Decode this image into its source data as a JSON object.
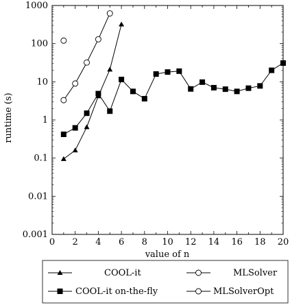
{
  "chart_data": {
    "type": "line",
    "title": "",
    "xlabel": "value of n",
    "ylabel": "runtime (s)",
    "xlim": [
      0,
      20
    ],
    "ylim": [
      0.001,
      1000
    ],
    "yscale": "log",
    "grid": false,
    "legend_placement": "bottom",
    "x_ticks": [
      "0",
      "2",
      "4",
      "6",
      "8",
      "10",
      "12",
      "14",
      "16",
      "18",
      "20"
    ],
    "y_ticks": [
      "0.001",
      "0.01",
      "0.1",
      "1",
      "10",
      "100",
      "1000"
    ],
    "series": [
      {
        "name": "COOL-it",
        "marker": "triangle",
        "x": [
          1,
          2,
          3,
          4,
          5,
          6
        ],
        "values": [
          0.095,
          0.16,
          0.65,
          4.2,
          21,
          320
        ]
      },
      {
        "name": "MLSolver",
        "marker": "circle",
        "x": [
          1
        ],
        "values": [
          120
        ]
      },
      {
        "name": "COOL-it on-the-fly",
        "marker": "square",
        "x": [
          1,
          2,
          3,
          4,
          5,
          6,
          7,
          8,
          9,
          10,
          11,
          12,
          13,
          14,
          15,
          16,
          17,
          18,
          19,
          20
        ],
        "values": [
          0.42,
          0.62,
          1.5,
          4.9,
          1.7,
          11.5,
          5.6,
          3.6,
          16,
          18,
          19,
          6.5,
          9.8,
          7,
          6.4,
          5.6,
          6.8,
          7.8,
          20,
          31
        ]
      },
      {
        "name": "MLSolverOpt",
        "marker": "circle",
        "x": [
          1,
          2,
          3,
          4,
          5
        ],
        "values": [
          3.3,
          9,
          32,
          130,
          620
        ]
      }
    ]
  }
}
